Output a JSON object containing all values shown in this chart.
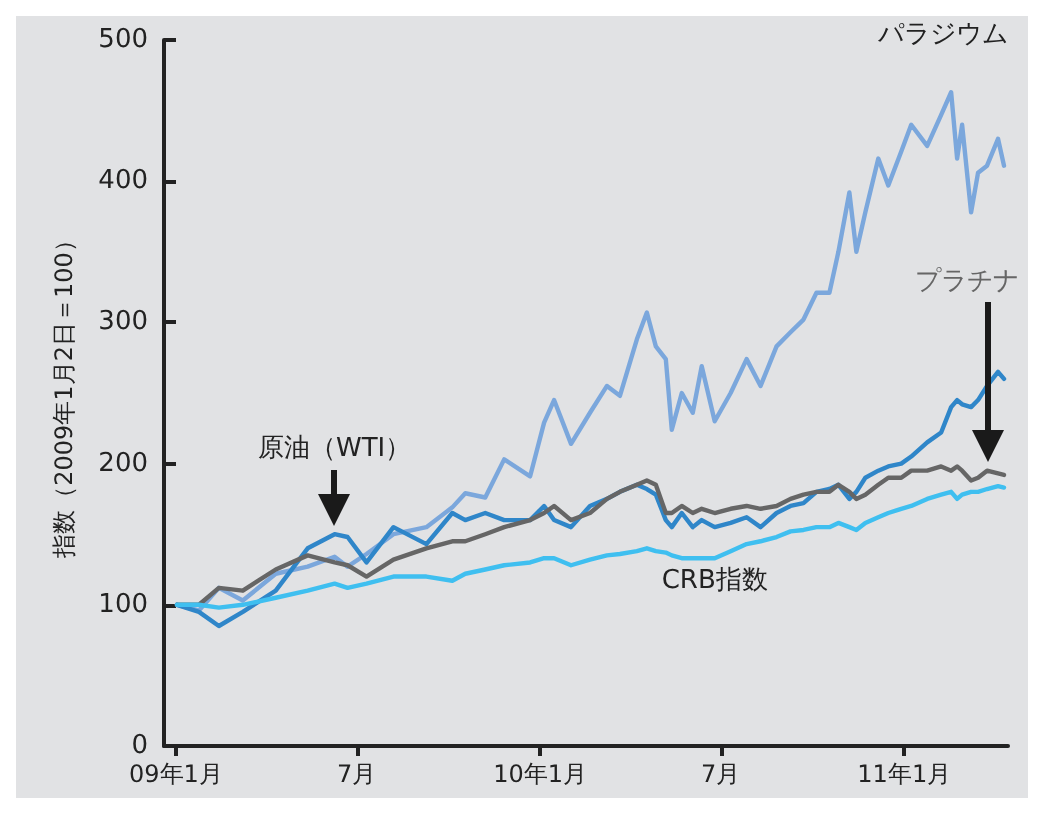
{
  "chart_data": {
    "type": "line",
    "ylabel": "指数（2009年1月2日＝100）",
    "x": [
      "2009-01-02",
      "2009-01-24",
      "2009-02-13",
      "2009-03-09",
      "2009-04-11",
      "2009-05-13",
      "2009-06-09",
      "2009-06-22",
      "2009-07-11",
      "2009-08-07",
      "2009-09-09",
      "2009-10-05",
      "2009-10-18",
      "2009-11-07",
      "2009-11-26",
      "2009-12-22",
      "2010-01-05",
      "2010-01-15",
      "2010-02-01",
      "2010-02-20",
      "2010-03-09",
      "2010-03-22",
      "2010-04-08",
      "2010-04-18",
      "2010-04-27",
      "2010-05-07",
      "2010-05-13",
      "2010-05-23",
      "2010-06-03",
      "2010-06-12",
      "2010-06-25",
      "2010-07-11",
      "2010-07-27",
      "2010-08-10",
      "2010-08-26",
      "2010-09-09",
      "2010-09-22",
      "2010-10-05",
      "2010-10-18",
      "2010-10-27",
      "2010-11-07",
      "2010-11-14",
      "2010-11-23",
      "2010-12-06",
      "2010-12-16",
      "2010-12-29",
      "2011-01-08",
      "2011-01-24",
      "2011-02-07",
      "2011-02-17",
      "2011-02-23",
      "2011-02-28",
      "2011-03-09",
      "2011-03-16",
      "2011-03-25",
      "2011-04-05",
      "2011-04-11"
    ],
    "series": [
      {
        "name": "パラジウム",
        "color": "#7ba7dc",
        "values": [
          100,
          96,
          112,
          103,
          122,
          127,
          134,
          127,
          136,
          150,
          155,
          169,
          179,
          176,
          203,
          191,
          229,
          245,
          214,
          236,
          255,
          248,
          288,
          307,
          283,
          274,
          224,
          250,
          236,
          269,
          230,
          250,
          274,
          255,
          283,
          293,
          302,
          321,
          321,
          350,
          392,
          350,
          378,
          416,
          397,
          421,
          440,
          425,
          447,
          463,
          416,
          440,
          378,
          406,
          411,
          430,
          411
        ]
      },
      {
        "name": "原油（WTI）",
        "color": "#2f86c9",
        "values": [
          100,
          95,
          85,
          95,
          110,
          140,
          150,
          148,
          130,
          155,
          143,
          165,
          160,
          165,
          160,
          160,
          170,
          160,
          155,
          170,
          175,
          180,
          185,
          182,
          178,
          160,
          155,
          165,
          155,
          160,
          155,
          158,
          162,
          155,
          165,
          170,
          172,
          180,
          182,
          185,
          175,
          180,
          190,
          195,
          198,
          200,
          205,
          215,
          222,
          240,
          245,
          242,
          240,
          245,
          255,
          265,
          260
        ]
      },
      {
        "name": "プラチナ",
        "color": "#666666",
        "values": [
          100,
          100,
          112,
          110,
          125,
          135,
          130,
          128,
          120,
          132,
          140,
          145,
          145,
          150,
          155,
          160,
          165,
          170,
          160,
          165,
          175,
          180,
          185,
          188,
          185,
          165,
          165,
          170,
          165,
          168,
          165,
          168,
          170,
          168,
          170,
          175,
          178,
          180,
          180,
          185,
          180,
          175,
          178,
          185,
          190,
          190,
          195,
          195,
          198,
          195,
          198,
          195,
          188,
          190,
          195,
          193,
          192
        ]
      },
      {
        "name": "CRB指数",
        "color": "#3fbff0",
        "values": [
          100,
          100,
          98,
          100,
          105,
          110,
          115,
          112,
          115,
          120,
          120,
          117,
          122,
          125,
          128,
          130,
          133,
          133,
          128,
          132,
          135,
          136,
          138,
          140,
          138,
          137,
          135,
          133,
          133,
          133,
          133,
          138,
          143,
          145,
          148,
          152,
          153,
          155,
          155,
          158,
          155,
          153,
          158,
          162,
          165,
          168,
          170,
          175,
          178,
          180,
          175,
          178,
          180,
          180,
          182,
          184,
          183
        ]
      }
    ],
    "xlim": [
      "2008-12-20",
      "2011-04-15"
    ],
    "xticks": [
      {
        "value": "2009-01-01",
        "label": "09年1月"
      },
      {
        "value": "2009-07-01",
        "label": "7月"
      },
      {
        "value": "2010-01-01",
        "label": "10年1月"
      },
      {
        "value": "2010-07-01",
        "label": "7月"
      },
      {
        "value": "2011-01-01",
        "label": "11年1月"
      }
    ],
    "ylim": [
      0,
      500
    ],
    "yticks": [
      0,
      100,
      200,
      300,
      400,
      500
    ],
    "grid": false,
    "legend": false,
    "marker": "none",
    "line_style": "solid"
  }
}
